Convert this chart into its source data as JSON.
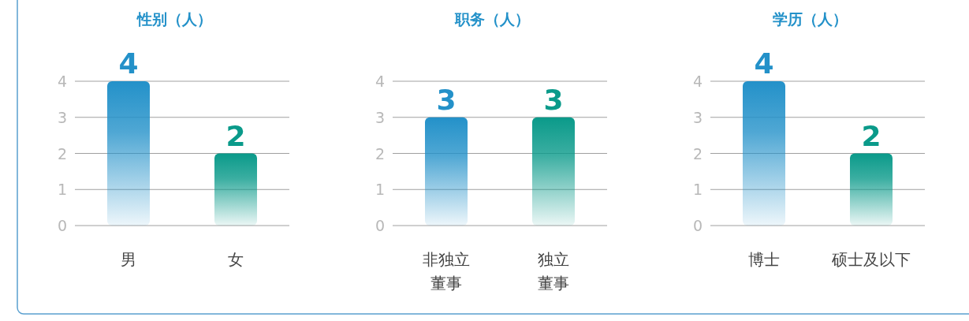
{
  "chart_data": [
    {
      "type": "bar",
      "title": "性别（人）",
      "categories": [
        "男",
        "女"
      ],
      "values": [
        4,
        2
      ],
      "colors": [
        "#2391c9",
        "#0a9a8a"
      ],
      "ylim": [
        0,
        4
      ],
      "yticks": [
        0,
        1,
        2,
        3,
        4
      ],
      "grid": "y",
      "data_labels": true
    },
    {
      "type": "bar",
      "title": "职务（人）",
      "categories": [
        "非独立董事",
        "独立董事"
      ],
      "values": [
        3,
        3
      ],
      "colors": [
        "#2391c9",
        "#0a9a8a"
      ],
      "ylim": [
        0,
        4
      ],
      "yticks": [
        0,
        1,
        2,
        3,
        4
      ],
      "grid": "y",
      "data_labels": true
    },
    {
      "type": "bar",
      "title": "学历（人）",
      "categories": [
        "博士",
        "硕士及以下"
      ],
      "values": [
        4,
        2
      ],
      "colors": [
        "#2391c9",
        "#0a9a8a"
      ],
      "ylim": [
        0,
        4
      ],
      "yticks": [
        0,
        1,
        2,
        3,
        4
      ],
      "grid": "y",
      "data_labels": true
    }
  ]
}
